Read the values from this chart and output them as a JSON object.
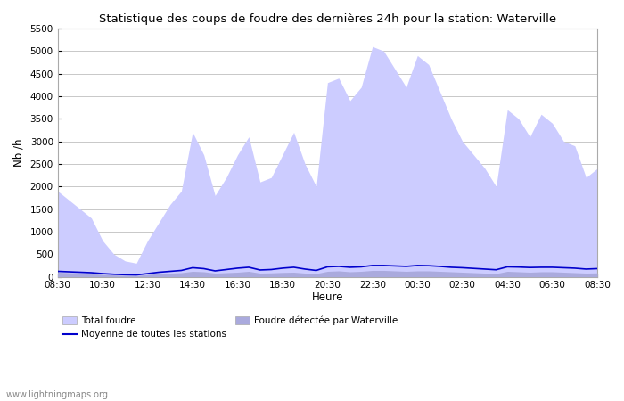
{
  "title": "Statistique des coups de foudre des dernières 24h pour la station: Waterville",
  "ylabel": "Nb /h",
  "xlabel": "Heure",
  "ylim": [
    0,
    5500
  ],
  "yticks": [
    0,
    500,
    1000,
    1500,
    2000,
    2500,
    3000,
    3500,
    4000,
    4500,
    5000,
    5500
  ],
  "xtick_labels": [
    "08:30",
    "10:30",
    "12:30",
    "14:30",
    "16:30",
    "18:30",
    "20:30",
    "22:30",
    "00:30",
    "02:30",
    "04:30",
    "06:30",
    "08:30"
  ],
  "background_color": "#ffffff",
  "plot_bg_color": "#ffffff",
  "grid_color": "#c8c8c8",
  "watermark": "www.lightningmaps.org",
  "legend_labels": [
    "Total foudre",
    "Moyenne de toutes les stations",
    "Foudre détectée par Waterville"
  ],
  "total_color": "#ccccff",
  "waterville_color": "#aaaadd",
  "moyenne_color": "#0000cc",
  "total_foudre": [
    1900,
    1700,
    1500,
    1300,
    800,
    500,
    350,
    300,
    800,
    1200,
    1600,
    1900,
    3200,
    2700,
    1800,
    2200,
    2700,
    3100,
    2100,
    2200,
    2700,
    3200,
    2500,
    2000,
    4300,
    4400,
    3900,
    4200,
    5100,
    5000,
    4600,
    4200,
    4900,
    4700,
    4100,
    3500,
    3000,
    2700,
    2400,
    2000,
    3700,
    3500,
    3100,
    3600,
    3400,
    3000,
    2900,
    2200,
    2400
  ],
  "waterville_foudre": [
    100,
    90,
    80,
    70,
    50,
    40,
    30,
    25,
    50,
    70,
    80,
    90,
    120,
    110,
    80,
    90,
    100,
    120,
    80,
    85,
    95,
    100,
    80,
    70,
    120,
    130,
    110,
    120,
    140,
    140,
    130,
    120,
    130,
    130,
    120,
    110,
    100,
    90,
    80,
    70,
    120,
    110,
    100,
    110,
    110,
    100,
    90,
    80,
    85
  ],
  "moyenne_stations": [
    120,
    110,
    100,
    90,
    70,
    55,
    45,
    40,
    70,
    100,
    120,
    140,
    200,
    180,
    130,
    160,
    190,
    210,
    150,
    160,
    190,
    210,
    170,
    140,
    220,
    230,
    210,
    220,
    250,
    250,
    240,
    230,
    250,
    245,
    230,
    210,
    200,
    185,
    170,
    155,
    220,
    215,
    205,
    210,
    210,
    200,
    190,
    170,
    180
  ]
}
